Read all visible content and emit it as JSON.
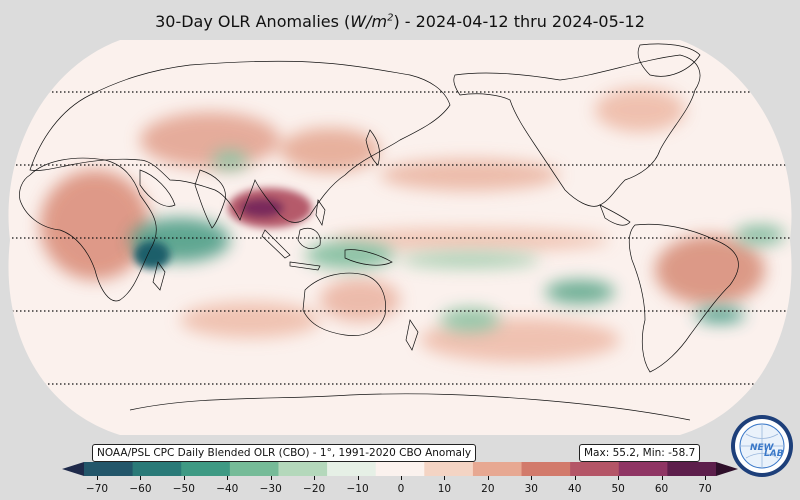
{
  "title_prefix": "30-Day OLR Anomalies (",
  "title_unit_main": "W/m",
  "title_unit_exp": "2",
  "title_suffix": ") - 2024-04-12 thru 2024-05-12",
  "source_label": "NOAA/PSL CPC Daily Blended OLR (CBO) - 1°, 1991-2020 CBO Anomaly",
  "stats_label": "Max: 55.2,  Min: -58.7",
  "colorbar": {
    "ticks": [
      "−70",
      "−60",
      "−50",
      "−40",
      "−30",
      "−20",
      "−10",
      "0",
      "10",
      "20",
      "30",
      "40",
      "50",
      "60",
      "70"
    ],
    "colors": [
      "#1f2a4a",
      "#23566a",
      "#2a7a78",
      "#3f9a84",
      "#76bb98",
      "#b4d8bb",
      "#e6f0e6",
      "#fbf2ee",
      "#f4d4c4",
      "#e7a892",
      "#d27a6b",
      "#b45567",
      "#8f3564",
      "#5d1f4c",
      "#2e0f2a"
    ]
  },
  "logo": {
    "text_main": "NEW",
    "text_accent": "LAB",
    "ring_text": "",
    "colors": {
      "outer": "#1d3f7a",
      "inner": "#ffffff",
      "accent": "#3a78c8"
    }
  },
  "map_features": {
    "projection": "Robinson",
    "central_longitude": 180,
    "latitude_lines": [
      "60°N",
      "30°N",
      "0°",
      "30°S",
      "60°S"
    ],
    "anomaly_regions": [
      {
        "region": "Indochina",
        "sign": "positive",
        "strength": "strong"
      },
      {
        "region": "East Africa / Indian Ocean",
        "sign": "negative",
        "strength": "strong"
      },
      {
        "region": "Maritime Continent",
        "sign": "negative",
        "strength": "moderate"
      },
      {
        "region": "South America interior",
        "sign": "positive",
        "strength": "moderate"
      },
      {
        "region": "South Pacific",
        "sign": "negative",
        "strength": "moderate"
      },
      {
        "region": "Southeast Pacific / South America coast",
        "sign": "negative",
        "strength": "moderate"
      },
      {
        "region": "Africa",
        "sign": "positive",
        "strength": "moderate"
      },
      {
        "region": "Eastern Asia",
        "sign": "positive",
        "strength": "moderate"
      },
      {
        "region": "Equatorial Pacific",
        "sign": "positive",
        "strength": "moderate"
      }
    ]
  }
}
